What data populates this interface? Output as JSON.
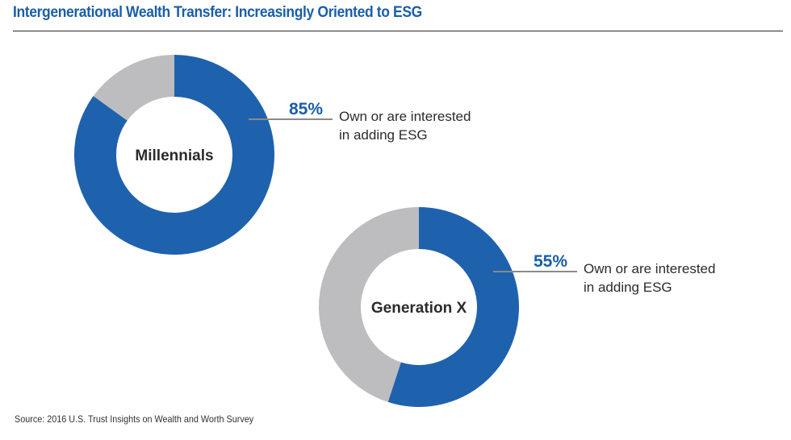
{
  "title": "Intergenerational Wealth Transfer: Increasingly Oriented to ESG",
  "source": "Source: 2016 U.S. Trust Insights on Wealth and Worth Survey",
  "colors": {
    "highlight": "#1e62ae",
    "remainder": "#bdbdbf",
    "title": "#1a5ea8",
    "leader": "#8a8a8a"
  },
  "chart_data": [
    {
      "type": "pie",
      "title": "Millennials",
      "slices": [
        {
          "label": "Own or are interested in adding ESG",
          "value": 85
        },
        {
          "label": "",
          "value": 15
        }
      ],
      "annotation": {
        "value_label": "85%",
        "text_lines": [
          "Own or are interested",
          "in adding ESG"
        ]
      }
    },
    {
      "type": "pie",
      "title": "Generation X",
      "slices": [
        {
          "label": "Own or are interested in adding ESG",
          "value": 55
        },
        {
          "label": "",
          "value": 45
        }
      ],
      "annotation": {
        "value_label": "55%",
        "text_lines": [
          "Own or are interested",
          "in adding ESG"
        ]
      }
    }
  ]
}
